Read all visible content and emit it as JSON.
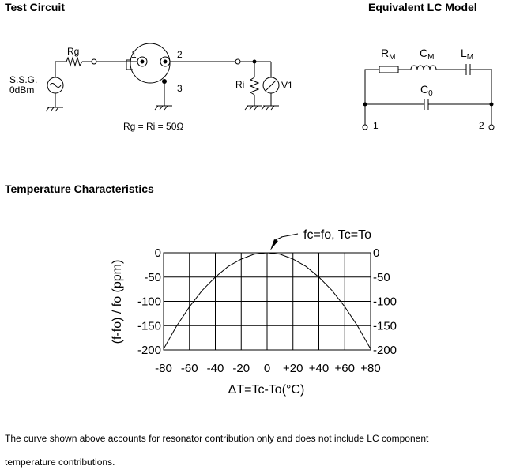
{
  "headings": {
    "test_circuit": "Test Circuit",
    "lc_model": "Equivalent LC Model",
    "temperature": "Temperature Characteristics"
  },
  "test_circuit": {
    "rg_label": "Rg",
    "ssg_label_1": "S.S.G.",
    "ssg_label_2": "0dBm",
    "pin_1": "1",
    "pin_2": "2",
    "pin_3": "3",
    "ri_label": "Ri",
    "v1_label": "V1",
    "equation": "Rg = Ri = 50Ω"
  },
  "lc_model": {
    "rm": "R",
    "rm_sub": "M",
    "cm": "C",
    "cm_sub": "M",
    "lm": "L",
    "lm_sub": "M",
    "co": "C",
    "co_sub": "0",
    "terminal_1": "1",
    "terminal_2": "2"
  },
  "chart_data": {
    "type": "line",
    "xlabel": "ΔT=Tc-To(°C)",
    "ylabel": "(f-fo) / fo  (ppm)",
    "annotation": "fc=fo, Tc=To",
    "xlim": [
      -80,
      80
    ],
    "ylim": [
      -200,
      0
    ],
    "x_ticks": [
      "-80",
      "-60",
      "-40",
      "-20",
      "0",
      "+20",
      "+40",
      "+60",
      "+80"
    ],
    "y_ticks": [
      "0",
      "-50",
      "-100",
      "-150",
      "-200"
    ],
    "grid": true,
    "series": [
      {
        "x": [
          -80,
          -70,
          -60,
          -50,
          -40,
          -30,
          -20,
          -10,
          0,
          10,
          20,
          30,
          40,
          50,
          60,
          70,
          80
        ],
        "y": [
          -198,
          -151,
          -111,
          -77,
          -50,
          -28,
          -13,
          -3,
          0,
          -3,
          -13,
          -28,
          -50,
          -77,
          -111,
          -151,
          -198
        ]
      }
    ]
  },
  "footnote": {
    "line1": "The curve shown above accounts for resonator contribution only and does not include LC component",
    "line2": "temperature contributions."
  }
}
